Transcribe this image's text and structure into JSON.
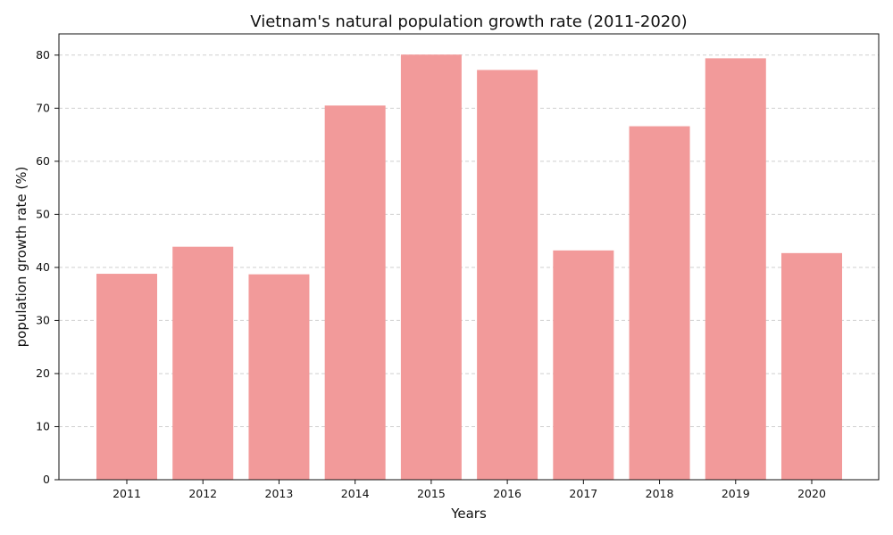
{
  "chart_data": {
    "type": "bar",
    "title": "Vietnam's natural population growth rate (2011-2020)",
    "xlabel": "Years",
    "ylabel": "population growth rate (%)",
    "categories": [
      "2011",
      "2012",
      "2013",
      "2014",
      "2015",
      "2016",
      "2017",
      "2018",
      "2019",
      "2020"
    ],
    "values": [
      38.8,
      43.9,
      38.7,
      70.5,
      80.1,
      77.2,
      43.2,
      66.6,
      79.4,
      42.7
    ],
    "ylim": [
      0,
      84
    ],
    "yticks": [
      0,
      10,
      20,
      30,
      40,
      50,
      60,
      70,
      80
    ],
    "grid": "y-dashed",
    "bar_color": "#f29a9a"
  }
}
